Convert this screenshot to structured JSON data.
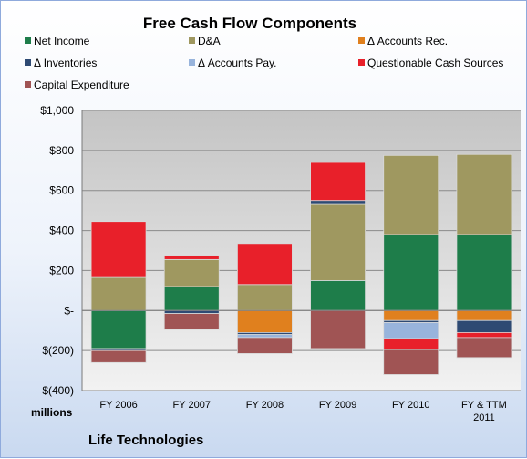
{
  "chart_data": {
    "type": "bar",
    "stacked": true,
    "title": "Free Cash Flow Components",
    "units_label": "millions",
    "company": "Life Technologies",
    "ylim": [
      -400,
      1000
    ],
    "yticks": [
      -400,
      -200,
      0,
      200,
      400,
      600,
      800,
      1000
    ],
    "ytick_labels": [
      "$(400)",
      "$(200)",
      "$-",
      "$200",
      "$400",
      "$600",
      "$800",
      "$1,000"
    ],
    "categories": [
      [
        "FY 2006"
      ],
      [
        "FY 2007"
      ],
      [
        "FY 2008"
      ],
      [
        "FY 2009"
      ],
      [
        "FY 2010"
      ],
      [
        "FY & TTM",
        "2011"
      ]
    ],
    "grid": true,
    "legend_position": "top",
    "series": [
      {
        "name": "Net Income",
        "color": "#1e7d4a",
        "values": [
          -190,
          120,
          0,
          150,
          380,
          380
        ]
      },
      {
        "name": "D&A",
        "color": "#9f9860",
        "values": [
          165,
          135,
          130,
          380,
          395,
          400
        ]
      },
      {
        "name": "Δ Accounts Rec.",
        "color": "#e0801e",
        "values": [
          0,
          0,
          -110,
          0,
          -50,
          -50
        ]
      },
      {
        "name": "Δ Inventories",
        "color": "#2e4a73",
        "values": [
          -10,
          -15,
          -10,
          20,
          -10,
          -60
        ]
      },
      {
        "name": "Δ Accounts Pay.",
        "color": "#98b4dc",
        "values": [
          0,
          0,
          -15,
          0,
          -80,
          0
        ]
      },
      {
        "name": "Questionable Cash Sources",
        "color": "#e8202a",
        "values": [
          280,
          20,
          205,
          190,
          -55,
          -25
        ]
      },
      {
        "name": "Capital Expenditure",
        "color": "#a05454",
        "values": [
          -60,
          -80,
          -80,
          -190,
          -125,
          -100
        ]
      }
    ]
  }
}
